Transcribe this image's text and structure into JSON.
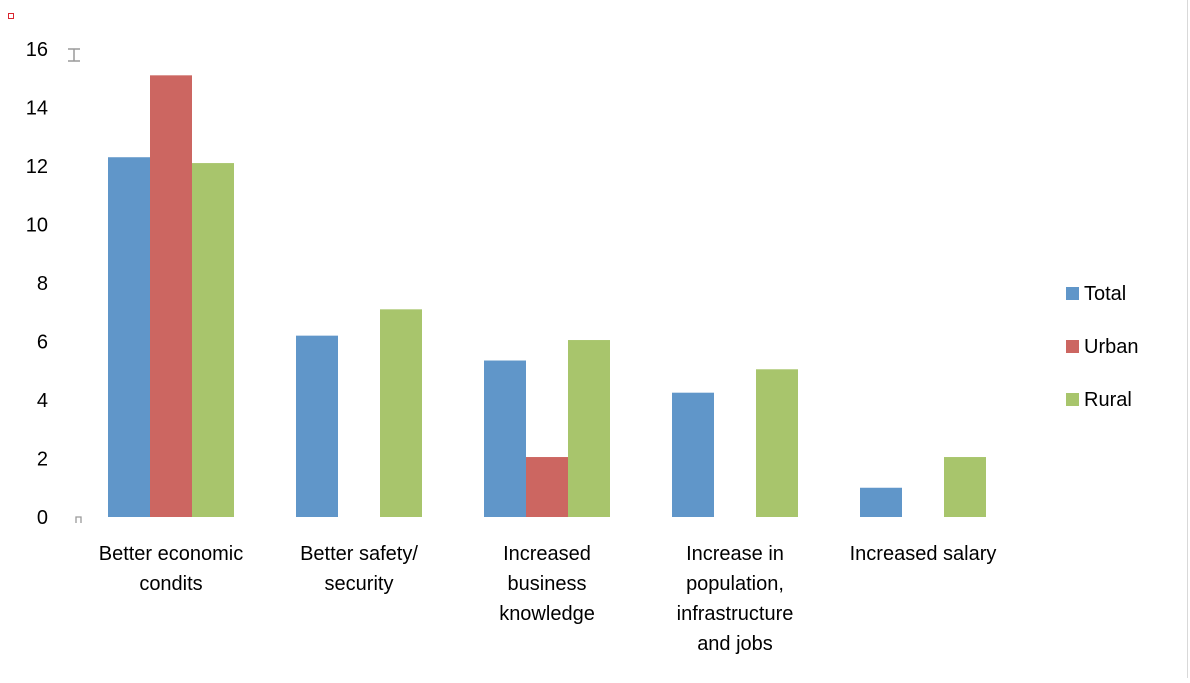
{
  "chart_data": {
    "type": "bar",
    "categories": [
      [
        "Better economic",
        "condits"
      ],
      [
        "Better safety/",
        "security"
      ],
      [
        "Increased",
        "business",
        "knowledge"
      ],
      [
        "Increase in",
        "population,",
        "infrastructure",
        "and jobs"
      ],
      [
        "Increased salary"
      ]
    ],
    "series": [
      {
        "name": "Total",
        "color": "#6096c9",
        "values": [
          12.3,
          6.2,
          5.35,
          4.25,
          1.0
        ]
      },
      {
        "name": "Urban",
        "color": "#cc6661",
        "values": [
          15.1,
          0,
          2.05,
          0,
          0
        ]
      },
      {
        "name": "Rural",
        "color": "#a8c56c",
        "values": [
          12.1,
          7.1,
          6.05,
          5.05,
          2.05
        ]
      }
    ],
    "ylim": [
      0,
      16
    ],
    "yticks": [
      "0",
      "2",
      "4",
      "6",
      "8",
      "10",
      "12",
      "14",
      "16"
    ],
    "title": "",
    "xlabel": "",
    "ylabel": "",
    "grid": false,
    "legend_position": "right"
  }
}
